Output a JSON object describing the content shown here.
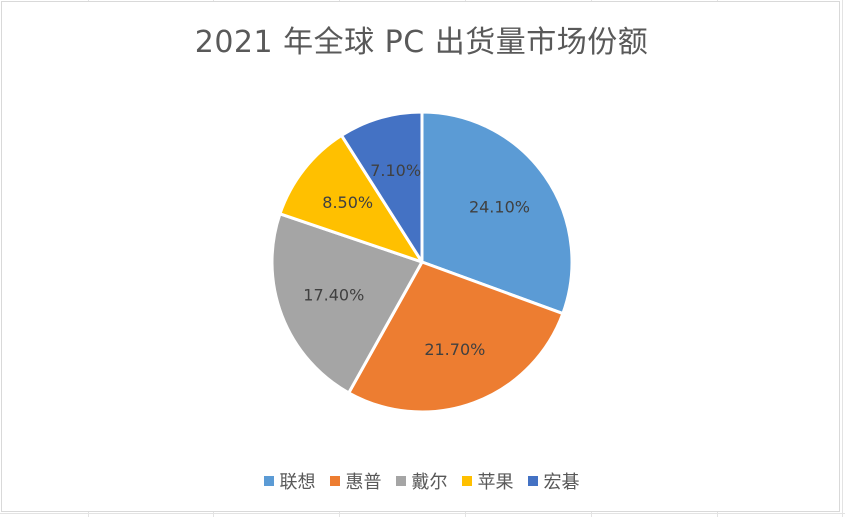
{
  "chart_data": {
    "type": "pie",
    "title": "2021 年全球 PC 出货量市场份额",
    "categories": [
      "联想",
      "惠普",
      "戴尔",
      "苹果",
      "宏碁"
    ],
    "values": [
      24.1,
      21.7,
      17.4,
      8.5,
      7.1
    ],
    "labels": [
      "24.10%",
      "21.70%",
      "17.40%",
      "8.50%",
      "7.10%"
    ],
    "colors": [
      "#5B9BD5",
      "#ED7D31",
      "#A5A5A5",
      "#FFC000",
      "#4472C4"
    ],
    "start_angle_deg": 0,
    "direction": "clockwise",
    "legend_position": "bottom"
  }
}
